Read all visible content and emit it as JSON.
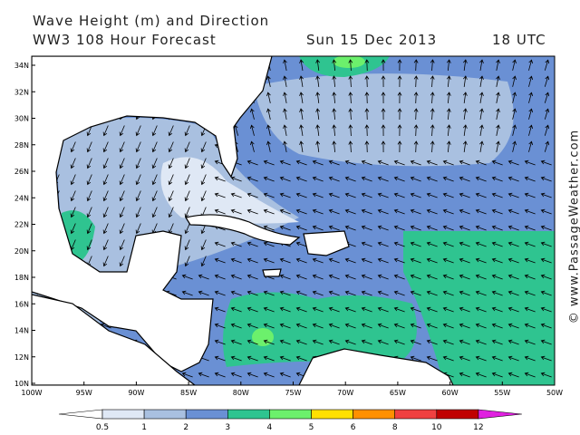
{
  "header": {
    "title": "Wave Height (m) and Direction",
    "forecast": "WW3 108 Hour Forecast",
    "date": "Sun 15 Dec 2013",
    "time": "18 UTC"
  },
  "map": {
    "lat_labels": [
      "34N",
      "32N",
      "30N",
      "28N",
      "26N",
      "24N",
      "22N",
      "20N",
      "18N",
      "16N",
      "14N",
      "12N",
      "10N"
    ],
    "lon_labels": [
      "100W",
      "95W",
      "90W",
      "85W",
      "80W",
      "75W",
      "70W",
      "65W",
      "60W",
      "55W",
      "50W"
    ]
  },
  "legend": {
    "ticks": [
      0.5,
      1,
      2,
      3,
      4,
      5,
      6,
      8,
      10,
      12
    ],
    "colors": [
      "#ffffff",
      "#dfe8f5",
      "#a9c0e0",
      "#6a90d4",
      "#2fc490",
      "#6cf06c",
      "#ffe000",
      "#ff9000",
      "#f04040",
      "#c00000",
      "#e020e0"
    ]
  },
  "credit": "© www.PassageWeather.com"
}
